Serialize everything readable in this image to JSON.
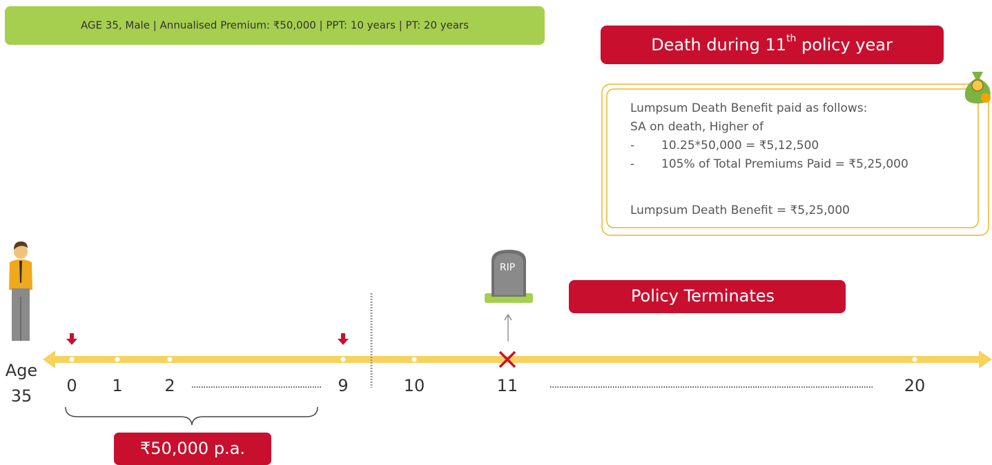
{
  "header": {
    "text": "AGE 35, Male | Annualised Premium: ₹50,000 | PPT: 10 years | PT: 20 years"
  },
  "death_title": {
    "before": "Death during 11",
    "superscript": "th",
    "after": " policy year"
  },
  "benefit_box": {
    "intro": "Lumpsum Death Benefit paid as follows:",
    "rule": "SA on death, Higher of",
    "options": [
      {
        "marker": "-",
        "text": "10.25*50,000 = ₹5,12,500"
      },
      {
        "marker": "-",
        "text": "105% of Total Premiums Paid = ₹5,25,000"
      }
    ],
    "result": "Lumpsum Death Benefit = ₹5,25,000"
  },
  "tombstone": {
    "label": "RIP"
  },
  "termination": {
    "label": "Policy Terminates"
  },
  "age": {
    "label": "Age",
    "value": "35"
  },
  "timeline": {
    "points": [
      "0",
      "1",
      "2",
      "9",
      "10",
      "11",
      "20"
    ]
  },
  "premium": {
    "label": "₹50,000 p.a."
  }
}
